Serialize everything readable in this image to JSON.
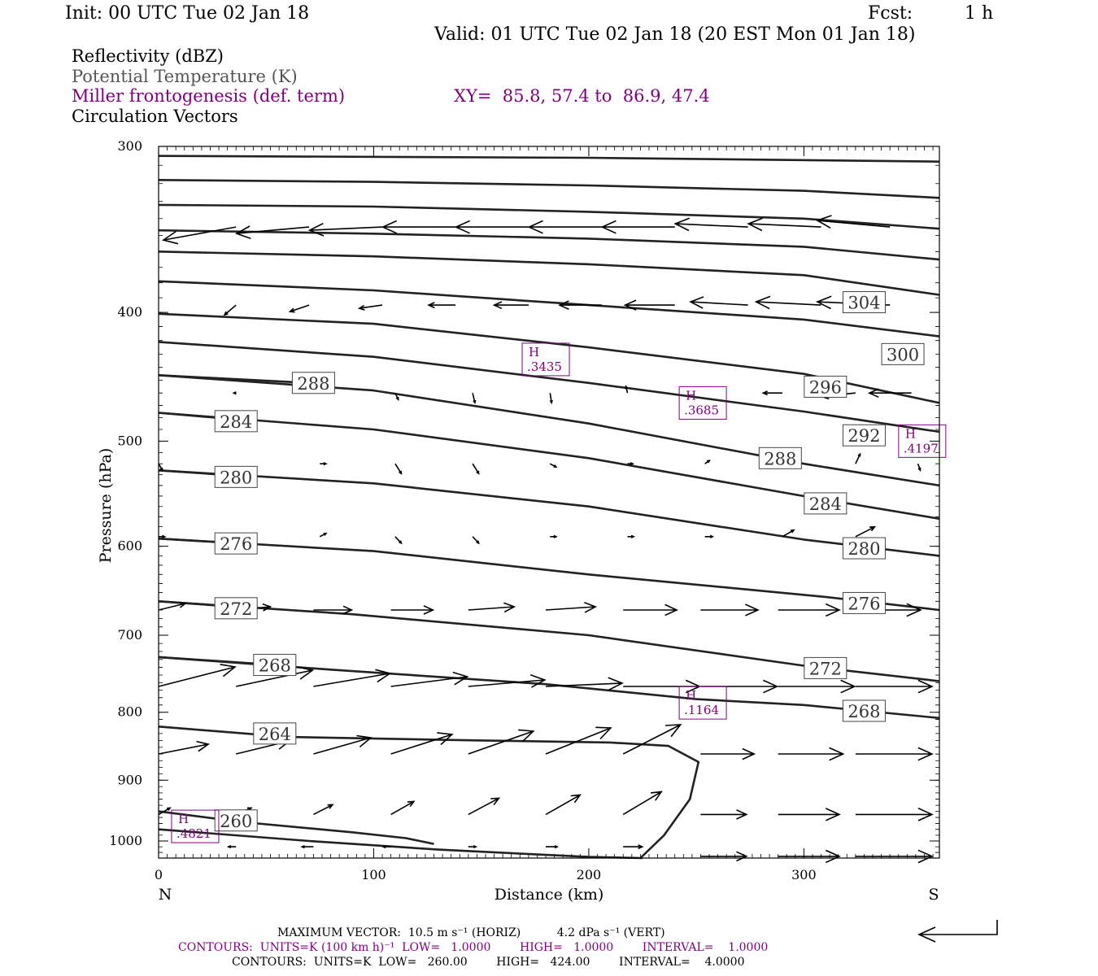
{
  "header": {
    "init": "Init: 00 UTC Tue 02 Jan 18",
    "fcst_label": "Fcst:",
    "fcst_value": "1 h",
    "valid": "Valid: 01 UTC Tue 02 Jan 18 (20 EST Mon 01 Jan 18)"
  },
  "fields": {
    "reflectivity": "Reflectivity (dBZ)",
    "theta": "Potential Temperature (K)",
    "frontogenesis": "Miller frontogenesis (def. term)",
    "xy": "XY=  85.8, 57.4 to  86.9, 47.4",
    "vectors": "Circulation Vectors"
  },
  "colors": {
    "purple": "#800080",
    "gray": "#555555",
    "black": "#000000"
  },
  "chart_data": {
    "type": "line",
    "xlabel": "Distance (km)",
    "ylabel": "Pressure (hPa)",
    "xlim": [
      0,
      363
    ],
    "ylim": [
      1030,
      300
    ],
    "y_scale": "log",
    "x_ticks": [
      "0",
      "100",
      "200",
      "300"
    ],
    "y_ticks": [
      "300",
      "400",
      "500",
      "600",
      "700",
      "800",
      "900",
      "1000"
    ],
    "x_end_labels": {
      "left": "N",
      "right": "S"
    },
    "theta_contours": [
      {
        "value": 260,
        "label": "260",
        "points": [
          [
            0,
            980
          ],
          [
            70,
            1000
          ],
          [
            130,
            1015
          ],
          [
            200,
            1028
          ],
          [
            225,
            1030
          ]
        ],
        "label_at": [
          36,
          965
        ]
      },
      {
        "value": 260,
        "label": "",
        "points": [
          [
            0,
            950
          ],
          [
            40,
            968
          ],
          [
            90,
            985
          ],
          [
            115,
            995
          ],
          [
            128,
            1005
          ]
        ],
        "label_at": null
      },
      {
        "value": 264,
        "label": "264",
        "points": [
          [
            0,
            820
          ],
          [
            60,
            835
          ],
          [
            150,
            840
          ],
          [
            210,
            843
          ],
          [
            237,
            848
          ],
          [
            251,
            872
          ],
          [
            247,
            930
          ],
          [
            235,
            990
          ],
          [
            224,
            1030
          ]
        ],
        "label_at": [
          54,
          830
        ]
      },
      {
        "value": 268,
        "label": "268",
        "points": [
          [
            0,
            727
          ],
          [
            80,
            743
          ],
          [
            180,
            762
          ],
          [
            250,
            782
          ],
          [
            300,
            790
          ],
          [
            363,
            808
          ]
        ],
        "label_at": [
          328,
          798
        ]
      },
      {
        "value": 268,
        "label": "268",
        "points": [
          [
            0,
            727
          ],
          [
            60,
            738
          ]
        ],
        "label_at": [
          54,
          737
        ]
      },
      {
        "value": 272,
        "label": "272",
        "points": [
          [
            0,
            660
          ],
          [
            90,
            675
          ],
          [
            200,
            700
          ],
          [
            300,
            738
          ],
          [
            363,
            758
          ]
        ],
        "label_at": [
          310,
          741
        ]
      },
      {
        "value": 272,
        "label": "272",
        "points": [
          [
            0,
            660
          ],
          [
            45,
            668
          ]
        ],
        "label_at": [
          36,
          668
        ]
      },
      {
        "value": 276,
        "label": "276",
        "points": [
          [
            0,
            592
          ],
          [
            100,
            605
          ],
          [
            200,
            630
          ],
          [
            310,
            655
          ],
          [
            363,
            670
          ]
        ],
        "label_at": [
          328,
          662
        ]
      },
      {
        "value": 276,
        "label": "276",
        "points": [
          [
            0,
            592
          ],
          [
            45,
            598
          ]
        ],
        "label_at": [
          36,
          597
        ]
      },
      {
        "value": 280,
        "label": "280",
        "points": [
          [
            0,
            526
          ],
          [
            100,
            538
          ],
          [
            200,
            560
          ],
          [
            300,
            593
          ],
          [
            363,
            610
          ]
        ],
        "label_at": [
          328,
          602
        ]
      },
      {
        "value": 280,
        "label": "280",
        "points": [
          [
            0,
            526
          ],
          [
            45,
            532
          ]
        ],
        "label_at": [
          36,
          532
        ]
      },
      {
        "value": 284,
        "label": "284",
        "points": [
          [
            0,
            476
          ],
          [
            100,
            490
          ],
          [
            200,
            515
          ],
          [
            300,
            550
          ],
          [
            363,
            572
          ]
        ],
        "label_at": [
          310,
          557
        ]
      },
      {
        "value": 284,
        "label": "284",
        "points": [
          [
            0,
            476
          ],
          [
            45,
            483
          ]
        ],
        "label_at": [
          36,
          483
        ]
      },
      {
        "value": 288,
        "label": "288",
        "points": [
          [
            0,
            446
          ],
          [
            100,
            458
          ],
          [
            200,
            485
          ],
          [
            300,
            520
          ],
          [
            363,
            540
          ]
        ],
        "label_at": [
          289,
          515
        ]
      },
      {
        "value": 288,
        "label": "288",
        "points": [
          [
            0,
            446
          ],
          [
            70,
            452
          ]
        ],
        "label_at": [
          72,
          452
        ]
      },
      {
        "value": 292,
        "label": "292",
        "points": [
          [
            0,
            421
          ],
          [
            100,
            432
          ],
          [
            200,
            452
          ],
          [
            300,
            475
          ],
          [
            363,
            492
          ]
        ],
        "label_at": [
          328,
          495
        ]
      },
      {
        "value": 296,
        "label": "296",
        "points": [
          [
            0,
            401
          ],
          [
            100,
            408
          ],
          [
            200,
            425
          ],
          [
            300,
            445
          ],
          [
            363,
            468
          ]
        ],
        "label_at": [
          310,
          455
        ]
      },
      {
        "value": 300,
        "label": "300",
        "points": [
          [
            0,
            379
          ],
          [
            100,
            385
          ],
          [
            200,
            395
          ],
          [
            300,
            405
          ],
          [
            363,
            417
          ]
        ],
        "label_at": [
          346,
          430
        ]
      },
      {
        "value": 304,
        "label": "304",
        "points": [
          [
            0,
            360
          ],
          [
            100,
            363
          ],
          [
            200,
            368
          ],
          [
            300,
            375
          ],
          [
            363,
            388
          ]
        ],
        "label_at": [
          328,
          393
        ]
      },
      {
        "value": 308,
        "label": "",
        "points": [
          [
            0,
            347
          ],
          [
            100,
            349
          ],
          [
            200,
            352
          ],
          [
            300,
            357
          ],
          [
            363,
            365
          ]
        ],
        "label_at": null
      },
      {
        "value": 312,
        "label": "",
        "points": [
          [
            0,
            332
          ],
          [
            100,
            333
          ],
          [
            200,
            336
          ],
          [
            300,
            340
          ],
          [
            363,
            346
          ]
        ],
        "label_at": null
      },
      {
        "value": 316,
        "label": "",
        "points": [
          [
            0,
            318
          ],
          [
            100,
            319
          ],
          [
            200,
            321
          ],
          [
            300,
            324
          ],
          [
            363,
            328
          ]
        ],
        "label_at": null
      },
      {
        "value": 320,
        "label": "",
        "points": [
          [
            0,
            305
          ],
          [
            200,
            306
          ],
          [
            363,
            308
          ]
        ],
        "label_at": null
      }
    ],
    "frontogenesis_maxima": [
      {
        "label": "H",
        "value": ".3435",
        "x": 180,
        "p": 434
      },
      {
        "label": "H",
        "value": ".3685",
        "x": 253,
        "p": 468
      },
      {
        "label": "H",
        "value": ".4197",
        "x": 355,
        "p": 500
      },
      {
        "label": "H",
        "value": ".1164",
        "x": 253,
        "p": 787
      },
      {
        "label": "H",
        "value": ".4821",
        "x": 17,
        "p": 975
      }
    ],
    "vector_rows": [
      {
        "p": 345,
        "vectors": [
          [
            36,
            -9.5,
            0.4
          ],
          [
            70,
            -9.5,
            0.2
          ],
          [
            104,
            -9.5,
            0.1
          ],
          [
            138,
            -9.5,
            0
          ],
          [
            172,
            -9.5,
            0
          ],
          [
            206,
            -9.5,
            0
          ],
          [
            240,
            -9.5,
            0
          ],
          [
            274,
            -9.5,
            -0.1
          ],
          [
            308,
            -9.5,
            -0.1
          ],
          [
            340,
            -9.5,
            -0.2
          ]
        ]
      },
      {
        "p": 395,
        "vectors": [
          [
            36,
            -1.5,
            0.3
          ],
          [
            70,
            -2.5,
            0.2
          ],
          [
            104,
            -3,
            0.1
          ],
          [
            138,
            -3.5,
            0
          ],
          [
            172,
            -4.5,
            0
          ],
          [
            206,
            -5.5,
            0
          ],
          [
            240,
            -6.5,
            0
          ],
          [
            274,
            -7.5,
            -0.1
          ],
          [
            308,
            -8.5,
            -0.1
          ],
          [
            340,
            -9.5,
            -0.1
          ]
        ]
      },
      {
        "p": 460,
        "vectors": [
          [
            36,
            -0.3,
            0
          ],
          [
            110,
            0.4,
            0.2
          ],
          [
            146,
            0.3,
            0.3
          ],
          [
            182,
            0.2,
            0.3
          ],
          [
            218,
            -0.2,
            -0.2
          ],
          [
            290,
            -2.5,
            0
          ],
          [
            324,
            -4.5,
            0.1
          ],
          [
            350,
            -5.5,
            0
          ]
        ]
      },
      {
        "p": 520,
        "vectors": [
          [
            0,
            0.5,
            0.2
          ],
          [
            75,
            0.8,
            0
          ],
          [
            110,
            0.8,
            0.3
          ],
          [
            146,
            0.8,
            0.3
          ],
          [
            182,
            0.8,
            0.1
          ],
          [
            218,
            0.7,
            0
          ],
          [
            254,
            0.6,
            -0.1
          ],
          [
            290,
            0.6,
            -0.2
          ],
          [
            324,
            0.6,
            -0.3
          ],
          [
            353,
            0.3,
            0.2
          ]
        ]
      },
      {
        "p": 590,
        "vectors": [
          [
            0,
            0.8,
            0
          ],
          [
            75,
            0.8,
            -0.1
          ],
          [
            110,
            0.8,
            0.2
          ],
          [
            146,
            0.8,
            0.2
          ],
          [
            182,
            0.8,
            0
          ],
          [
            218,
            0.8,
            0
          ],
          [
            254,
            1,
            0
          ],
          [
            290,
            1.5,
            -0.2
          ],
          [
            324,
            2.5,
            -0.3
          ]
        ]
      },
      {
        "p": 670,
        "vectors": [
          [
            0,
            3.5,
            -0.2
          ],
          [
            36,
            4.5,
            -0.1
          ],
          [
            72,
            5,
            0
          ],
          [
            108,
            5.5,
            0
          ],
          [
            144,
            6,
            -0.1
          ],
          [
            180,
            6.5,
            -0.1
          ],
          [
            216,
            7,
            0
          ],
          [
            252,
            7.5,
            0
          ],
          [
            288,
            8,
            0
          ],
          [
            324,
            8.5,
            0
          ]
        ]
      },
      {
        "p": 765,
        "vectors": [
          [
            0,
            10,
            -0.6
          ],
          [
            36,
            10,
            -0.5
          ],
          [
            72,
            10,
            -0.4
          ],
          [
            108,
            10,
            -0.3
          ],
          [
            144,
            10,
            -0.2
          ],
          [
            180,
            10,
            -0.1
          ],
          [
            216,
            10,
            0
          ],
          [
            252,
            10,
            0
          ],
          [
            288,
            10,
            0
          ],
          [
            324,
            10,
            0
          ]
        ]
      },
      {
        "p": 860,
        "vectors": [
          [
            0,
            6.5,
            -0.3
          ],
          [
            36,
            7,
            -0.4
          ],
          [
            72,
            7.5,
            -0.5
          ],
          [
            108,
            8,
            -0.6
          ],
          [
            144,
            8.5,
            -0.7
          ],
          [
            180,
            8.5,
            -0.8
          ],
          [
            216,
            7.5,
            -0.9
          ],
          [
            252,
            7,
            0
          ],
          [
            288,
            8.5,
            0
          ],
          [
            324,
            10,
            0
          ]
        ]
      },
      {
        "p": 955,
        "vectors": [
          [
            0,
            1.5,
            -0.2
          ],
          [
            36,
            2,
            -0.2
          ],
          [
            72,
            2.5,
            -0.3
          ],
          [
            108,
            3,
            -0.4
          ],
          [
            144,
            4,
            -0.5
          ],
          [
            180,
            4.5,
            -0.6
          ],
          [
            216,
            5,
            -0.7
          ],
          [
            252,
            6,
            0
          ],
          [
            288,
            8,
            0
          ],
          [
            324,
            10,
            0
          ]
        ]
      },
      {
        "p": 1010,
        "vectors": [
          [
            36,
            -1,
            0
          ],
          [
            72,
            -1.5,
            0
          ],
          [
            108,
            -1,
            0
          ],
          [
            144,
            1,
            0
          ],
          [
            180,
            1.5,
            0
          ],
          [
            216,
            2.5,
            0
          ]
        ]
      },
      {
        "p": 1027,
        "vectors": [
          [
            252,
            6,
            0
          ],
          [
            288,
            8,
            0
          ],
          [
            324,
            10,
            0
          ]
        ]
      }
    ]
  },
  "footer": {
    "max_vector": "MAXIMUM VECTOR:  10.5 m s⁻¹ (HORIZ)          4.2 dPa s⁻¹ (VERT)",
    "contours_purple": "CONTOURS:  UNITS=K (100 km h)⁻¹  LOW=   1.0000        HIGH=   1.0000        INTERVAL=    1.0000",
    "contours_black": "CONTOURS:  UNITS=K  LOW=   260.00        HIGH=   424.00        INTERVAL=    4.0000"
  }
}
